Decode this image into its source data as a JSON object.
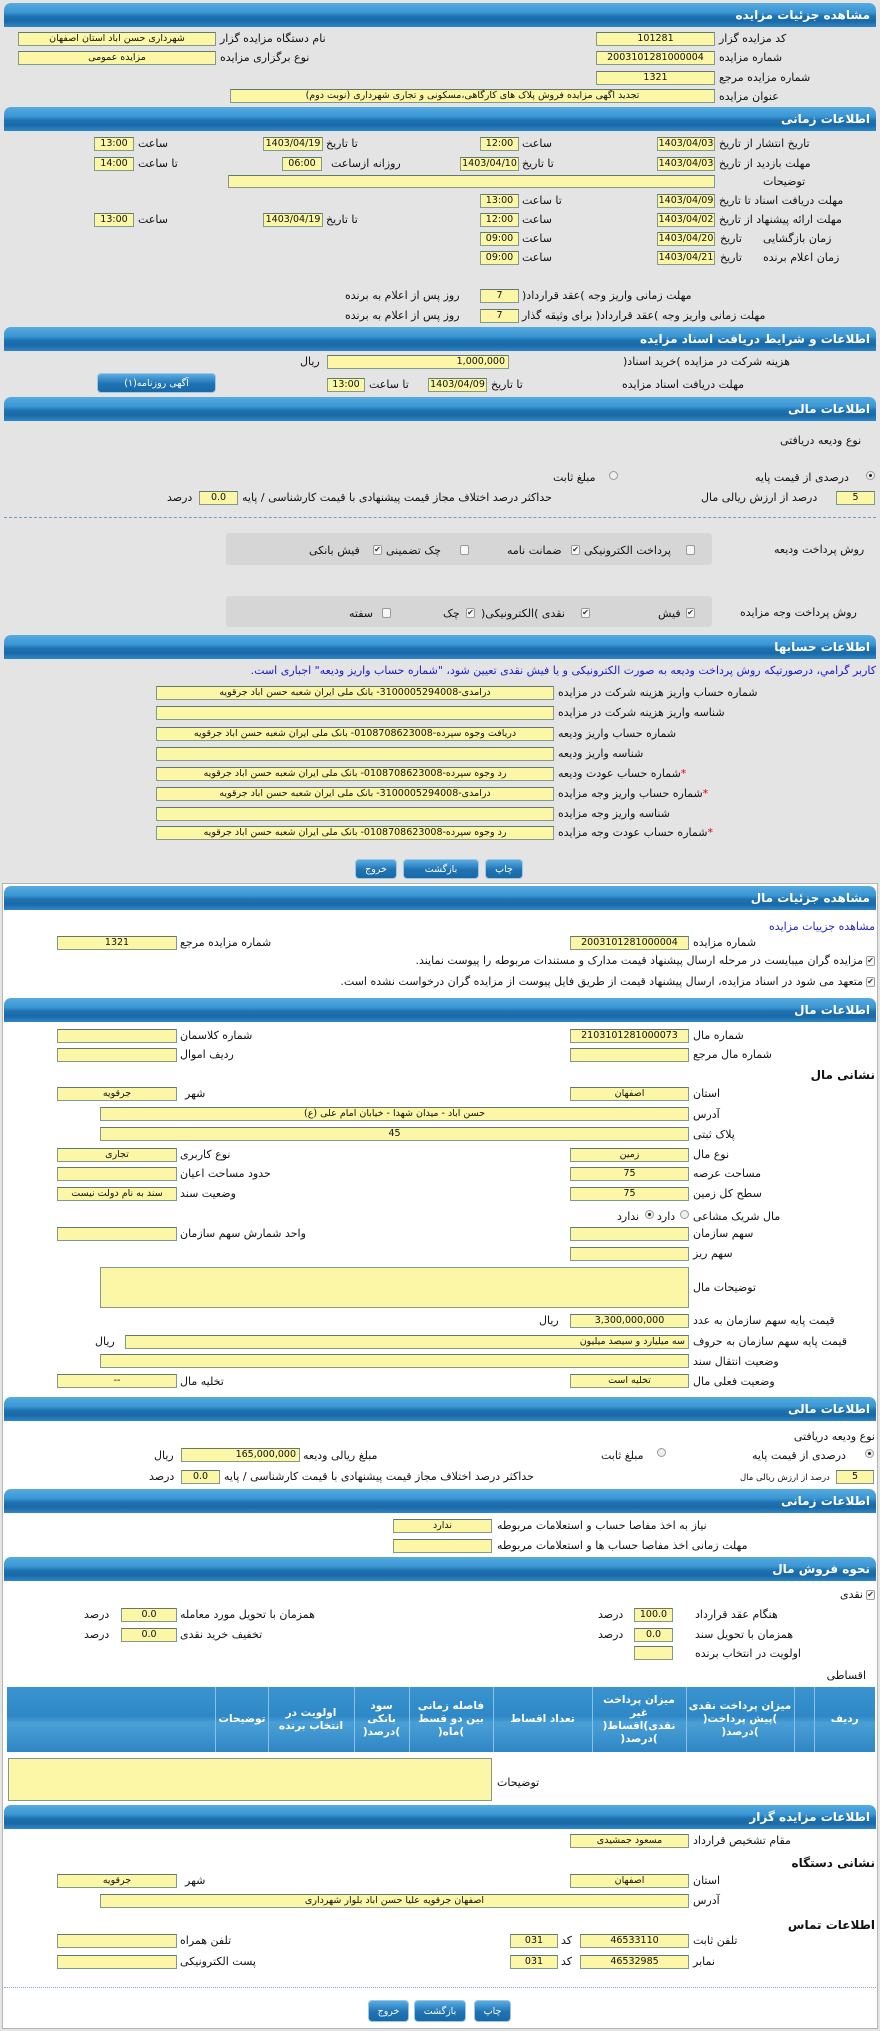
{
  "common": {
    "time": "ساعت",
    "to_date": "تا تاریخ",
    "to_time": "تا ساعت",
    "date": "تاریخ",
    "rial": "ریال",
    "percent": "درصد",
    "code": "کد"
  },
  "auction": {
    "title": "مشاهده جزئیات مزایده",
    "code_label": "کد مزایده گزار",
    "code": "101281",
    "number_label": "شماره مزایده",
    "number": "2003101281000004",
    "ref_label": "شماره مزایده مرجع",
    "ref": "1321",
    "subject_label": "عنوان مزایده",
    "subject": "تجدید آگهی مزایده فروش پلاک های کارگاهی،مسکونی و تجاری شهرداری (نوبت دوم)",
    "org_label": "نام دستگاه مزایده گزار",
    "org": "شهرداری حسن آباد استان اصفهان",
    "type_label": "نوع برگزاری مزایده",
    "type": "مزایده عمومی"
  },
  "timing": {
    "title": "اطلاعات زمانی",
    "publish_label": "تاریخ انتشار از تاریخ",
    "publish_from": "1403/04/03",
    "publish_from_time": "12:00",
    "publish_to": "1403/04/19",
    "publish_to_time": "13:00",
    "visit_label": "مهلت بازدید از تاریخ",
    "visit_from": "1403/04/03",
    "visit_to": "1403/04/10",
    "daily_label": "روزانه ازساعت",
    "daily_from": "06:00",
    "daily_to": "14:00",
    "notes_label": "توضیحات",
    "notes": "",
    "docs_label": "مهلت دریافت اسناد  تا تاریخ",
    "docs_to": "1403/04/09",
    "docs_time": "13:00",
    "offer_label": "مهلت ارائه پیشنهاد  از تاریخ",
    "offer_from": "1403/04/02",
    "offer_from_time": "12:00",
    "offer_to": "1403/04/19",
    "offer_to_time": "13:00",
    "opening_label": "زمان بازگشایی",
    "opening_date": "1403/04/20",
    "opening_time": "09:00",
    "winner_label": "زمان اعلام برنده",
    "winner_date": "1403/04/21",
    "winner_time": "09:00",
    "pay_label": "مهلت زمانی واریز وجه )عقد قرارداد(",
    "pay_days": "7",
    "pay_bail_label": "مهلت زمانی واریز وجه )عقد قرارداد( برای وثیقه گذار",
    "pay_bail_days": "7",
    "days_suffix": "روز پس از اعلام به برنده"
  },
  "docs": {
    "title": "اطلاعات و شرایط دریافت اسناد مزایده",
    "fee_label": "هزینه شرکت در مزایده )خرید اسناد(",
    "fee": "1,000,000",
    "deadline_label": "مهلت دریافت اسناد مزایده",
    "deadline_date": "1403/04/09",
    "deadline_time": "13:00",
    "newspaper_button": "آگهی روزنامه(۱)"
  },
  "finance": {
    "title": "اطلاعات مالی",
    "deposit_type_label": "نوع ودیعه دریافتی",
    "percent_option": "درصدی از قیمت پایه",
    "fixed_option": "مبلغ ثابت",
    "selected": "percent",
    "percent_value": "5",
    "percent_suffix": "درصد از ارزش ریالی مال",
    "max_diff_label": "حداکثر درصد اختلاف مجاز قیمت پیشنهادی با قیمت کارشناسی / پایه",
    "max_diff": "0.0",
    "deposit_methods_label": "روش پرداخت ودیعه",
    "deposit_methods": [
      {
        "label": "پرداخت الکترونیکی",
        "checked": false
      },
      {
        "label": "ضمانت نامه",
        "checked": true
      },
      {
        "label": "چک تضمینی",
        "checked": false
      },
      {
        "label": "فیش بانکی",
        "checked": true
      }
    ],
    "auction_pay_label": "روش پرداخت وجه مزایده",
    "auction_pay_methods": [
      {
        "label": "فیش",
        "checked": true
      },
      {
        "label": "نقدی )الکترونیکی(",
        "checked": true
      },
      {
        "label": "چک",
        "checked": true
      },
      {
        "label": "سفته",
        "checked": false
      }
    ]
  },
  "accounts": {
    "title": "اطلاعات حسابها",
    "notice": "کاربر گرامي، درصورتیکه روش پرداخت ودیعه به صورت الکترونیکی و یا فیش نقدی تعیین شود، \"شماره حساب واریز ودیعه\" اجباری است.",
    "rows": [
      {
        "label": "شماره حساب واریز هزینه شرکت در مزایده",
        "value": "درآمدی-3100005294008- بانک ملی ایران شعبه حسن آباد جرقویه",
        "required": false
      },
      {
        "label": "شناسه واریز هزینه شرکت در مزایده",
        "value": "",
        "required": false
      },
      {
        "label": "شماره حساب واریز ودیعه",
        "value": "دریافت وجوه سپرده-0108708623008- بانک ملی ایران شعبه حسن آباد جرقویه",
        "required": false
      },
      {
        "label": "شناسه واریز ودیعه",
        "value": "",
        "required": false
      },
      {
        "label": "شماره حساب عودت ودیعه",
        "value": "رد وجوه سپرده-0108708623008- بانک ملی ایران شعبه حسن آباد جرقویه",
        "required": true
      },
      {
        "label": "شماره حساب واریز وجه مزایده",
        "value": "درآمدی-3100005294008- بانک ملی ایران شعبه حسن آباد جرقویه",
        "required": true
      },
      {
        "label": "شناسه واریز وجه مزایده",
        "value": "",
        "required": false
      },
      {
        "label": "شماره حساب عودت وجه مزایده",
        "value": "رد وجوه سپرده-0108708623008- بانک ملی ایران شعبه حسن آباد جرقویه",
        "required": true
      }
    ],
    "required_mark": "*"
  },
  "buttons": {
    "print": "چاپ",
    "back": "بازگشت",
    "exit": "خروج"
  },
  "asset_details": {
    "title": "مشاهده جزئیات مال",
    "link": "مشاهده جزییات مزایده",
    "number_label": "شماره مزایده",
    "number": "2003101281000004",
    "ref_label": "شماره مزایده مرجع",
    "ref": "1321",
    "attach_required": "مزایده گران میبایست در مرحله ارسال پیشنهاد قیمت مدارک و مستندات مربوطه را پیوست نمایند.",
    "attach_not_requested": "متعهد می شود در اسناد مزایده، ارسال پیشنهاد قیمت از طریق فایل پیوست از مزایده گران درخواست نشده است."
  },
  "asset": {
    "title": "اطلاعات مال",
    "number_label": "شماره مال",
    "number": "2103101281000073",
    "class_label": "شماره کلاسمان",
    "class": "",
    "ref_label": "شماره مال مرجع",
    "ref": "",
    "row_label": "ردیف اموال",
    "row": "",
    "address_title": "نشانی مال",
    "province_label": "استان",
    "province": "اصفهان",
    "city_label": "شهر",
    "city": "جرقویه",
    "address_label": "آدرس",
    "address": "حسن آباد - میدان شهدا - خیابان امام علی (ع)",
    "plate_label": "پلاک ثبتی",
    "plate": "45",
    "kind_label": "نوع مال",
    "kind": "زمین",
    "usage_label": "نوع کاربری",
    "usage": "تجاری",
    "area_label": "مساحت عرصه",
    "area": "75",
    "building_label": "حدود مساحت اعیان",
    "building": "",
    "land_label": "سطح کل زمین",
    "land": "75",
    "deed_label": "وضعیت سند",
    "deed": "سند به نام دولت نیست",
    "shared_label": "مال شریک مشاعی",
    "shared_yes": "دارد",
    "shared_no": "ندارد",
    "shared": "no",
    "org_share_label": "سهم سازمان",
    "org_share": "",
    "share_unit_label": "واحد شمارش سهم سازمان",
    "share_unit": "",
    "fine_share_label": "سهم ریز",
    "fine_share": "",
    "desc_label": "توضیحات مال",
    "desc": "",
    "price_num_label": "قیمت پایه سهم  سازمان به عدد",
    "price_num": "3,300,000,000",
    "price_words_label": "قیمت پایه سهم  سازمان به حروف",
    "price_words": "سه میلیارد و سیصد میلیون",
    "transfer_label": "وضعیت انتقال سند",
    "transfer": "",
    "status_label": "وضعیت فعلی مال",
    "status": "تخلیه است",
    "evac_label": "تخلیه مال",
    "evac": "--"
  },
  "asset_finance": {
    "title": "اطلاعات مالی",
    "deposit_type_label": "نوع ودیعه دریافتی",
    "percent_option": "درصدی از قیمت پایه",
    "fixed_option": "مبلغ ثابت",
    "selected": "percent",
    "deposit_amount_label": "مبلغ ریالی ودیعه",
    "deposit_amount": "165,000,000",
    "percent_value": "5",
    "percent_suffix": "درصد از ارزش ریالی مال",
    "max_diff_label": "حداکثر درصد اختلاف مجاز قیمت پیشنهادی با قیمت کارشناسی / پایه",
    "max_diff": "0.0"
  },
  "asset_timing": {
    "title": "اطلاعات زمانی",
    "clearance_label": "نیاز به اخذ مفاصا حساب و استعلامات مربوطه",
    "clearance": "ندارد",
    "clearance_deadline_label": "مهلت زمانی اخذ مفاصا حساب ها و استعلامات مربوطه",
    "clearance_deadline": ""
  },
  "sale": {
    "title": "نحوه فروش مال",
    "cash_label": "نقدی",
    "cash_checked": true,
    "contract_label": "هنگام عقد قرارداد",
    "contract": "100.0",
    "delivery_label": "همزمان با تحویل مورد معامله",
    "delivery": "0.0",
    "deed_label": "همزمان با تحویل سند",
    "deed": "0.0",
    "discount_label": "تخفیف خرید نقدی",
    "discount": "0.0",
    "priority_label": "اولویت در انتخاب برنده",
    "priority": "",
    "installment_label": "اقساطی",
    "columns": [
      "ردیف",
      "",
      "میزان پرداخت نقدی )پیش پرداخت( )درصد(",
      "میزان پرداخت غیر نقدی)اقساط( )درصد(",
      "تعداد اقساط",
      "فاصله زمانی بین دو قسط )ماه(",
      "سود بانکی )درصد(",
      "اولویت در انتخاب برنده",
      "توضیحات",
      ""
    ],
    "notes_label": "توضیحات",
    "notes": ""
  },
  "auctioneer": {
    "title": "اطلاعات مزایده گزار",
    "authority_label": "مقام تشخیص قرارداد",
    "authority": "مسعود جمشیدی",
    "address_title": "نشانی دستگاه",
    "province_label": "استان",
    "province": "اصفهان",
    "city_label": "شهر",
    "city": "جرقویه",
    "address_label": "آدرس",
    "address": "اصفهان جرقویه علیا حسن آباد بلوار شهرداری",
    "contact_title": "اطلاعات تماس",
    "phone_label": "تلفن ثابت",
    "phone": "46533110",
    "phone_code": "031",
    "fax_label": "نمابر",
    "fax": "46532985",
    "fax_code": "031",
    "mobile_label": "تلفن همراه",
    "mobile": "",
    "email_label": "پست الکترونیکی",
    "email": ""
  },
  "colors": {
    "header": "#1e72b2",
    "input": "#fbf7a6",
    "notice": "#1a1acc",
    "page": "#e4e4e4"
  }
}
